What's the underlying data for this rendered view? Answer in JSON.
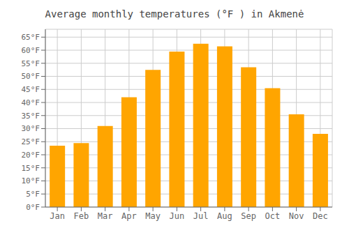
{
  "chart_data": {
    "type": "bar",
    "title": "Average monthly temperatures (°F ) in Akmenė",
    "categories": [
      "Jan",
      "Feb",
      "Mar",
      "Apr",
      "May",
      "Jun",
      "Jul",
      "Aug",
      "Sep",
      "Oct",
      "Nov",
      "Dec"
    ],
    "values": [
      23.5,
      24.5,
      31.0,
      42.0,
      52.5,
      59.5,
      62.5,
      61.5,
      53.5,
      45.5,
      35.5,
      28.0
    ],
    "color": "#FFA500",
    "ylim": [
      0,
      68
    ],
    "yticks": [
      {
        "value": 0,
        "label": "0°F"
      },
      {
        "value": 5,
        "label": "5°F"
      },
      {
        "value": 10,
        "label": "10°F"
      },
      {
        "value": 15,
        "label": "15°F"
      },
      {
        "value": 20,
        "label": "20°F"
      },
      {
        "value": 25,
        "label": "25°F"
      },
      {
        "value": 30,
        "label": "30°F"
      },
      {
        "value": 35,
        "label": "35°F"
      },
      {
        "value": 40,
        "label": "40°F"
      },
      {
        "value": 45,
        "label": "45°F"
      },
      {
        "value": 50,
        "label": "50°F"
      },
      {
        "value": 55,
        "label": "55°F"
      },
      {
        "value": 60,
        "label": "60°F"
      },
      {
        "value": 65,
        "label": "65°F"
      }
    ],
    "grid": true
  }
}
